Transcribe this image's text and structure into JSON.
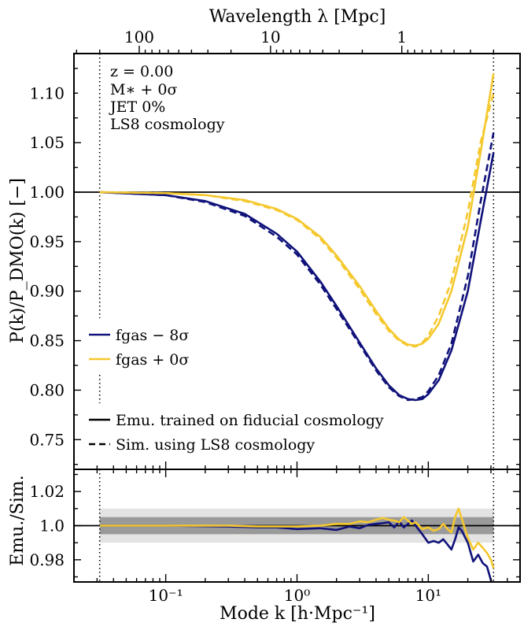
{
  "chart_data": [
    {
      "type": "line",
      "panel": "top",
      "xlabel": "Mode k [h·Mpc⁻¹]",
      "ylabel": "P(k)/P_DMO(k) [−]",
      "top_axis_label": "Wavelength λ [Mpc]",
      "top_ticks": [
        {
          "lambda": 100,
          "label": "100"
        },
        {
          "lambda": 10,
          "label": "10"
        },
        {
          "lambda": 1,
          "label": "1"
        }
      ],
      "xscale": "log",
      "xlim": [
        0.02,
        50
      ],
      "ylim": [
        0.72,
        1.14
      ],
      "yticks": [
        0.75,
        0.8,
        0.85,
        0.9,
        0.95,
        1.0,
        1.05,
        1.1
      ],
      "ytick_labels": [
        "0.75",
        "0.80",
        "0.85",
        "0.90",
        "0.95",
        "1.00",
        "1.05",
        "1.10"
      ],
      "reference_line": 1.0,
      "vlines": [
        0.0314,
        31.4
      ],
      "annotation": [
        "z = 0.00",
        "M∗ + 0σ",
        "JET 0%",
        "LS8 cosmology"
      ],
      "legend_colors": [
        {
          "label": "fgas − 8σ",
          "color": "#10127a"
        },
        {
          "label": "fgas + 0σ",
          "color": "#f5c82e"
        }
      ],
      "legend_styles": [
        {
          "label": "Emu. trained on fiducial cosmology",
          "dash": false
        },
        {
          "label": "Sim. using LS8 cosmology",
          "dash": true
        }
      ],
      "series": [
        {
          "color": "#10127a",
          "style": "solid",
          "x": [
            0.0314,
            0.1,
            0.2,
            0.4,
            0.7,
            1.0,
            1.5,
            2.0,
            3.0,
            4.0,
            5.0,
            6.0,
            7.0,
            8.0,
            9.0,
            10.0,
            12.0,
            15.0,
            20.0,
            25.0,
            31.4
          ],
          "y": [
            1.0,
            0.997,
            0.991,
            0.978,
            0.958,
            0.94,
            0.91,
            0.885,
            0.848,
            0.822,
            0.805,
            0.795,
            0.791,
            0.79,
            0.791,
            0.796,
            0.81,
            0.84,
            0.9,
            0.97,
            1.04
          ]
        },
        {
          "color": "#10127a",
          "style": "dashed",
          "x": [
            0.0314,
            0.1,
            0.2,
            0.4,
            0.7,
            1.0,
            1.5,
            2.0,
            3.0,
            4.0,
            5.0,
            6.0,
            7.0,
            8.0,
            9.0,
            10.0,
            12.0,
            15.0,
            20.0,
            25.0,
            31.4
          ],
          "y": [
            1.0,
            0.997,
            0.99,
            0.976,
            0.955,
            0.937,
            0.907,
            0.882,
            0.846,
            0.82,
            0.803,
            0.794,
            0.79,
            0.791,
            0.793,
            0.799,
            0.815,
            0.847,
            0.915,
            0.99,
            1.06
          ]
        },
        {
          "color": "#f5c82e",
          "style": "solid",
          "x": [
            0.0314,
            0.1,
            0.2,
            0.4,
            0.7,
            1.0,
            1.5,
            2.0,
            3.0,
            4.0,
            5.0,
            6.0,
            7.0,
            8.0,
            9.0,
            10.0,
            12.0,
            15.0,
            20.0,
            25.0,
            31.4
          ],
          "y": [
            1.0,
            0.999,
            0.997,
            0.992,
            0.983,
            0.973,
            0.955,
            0.936,
            0.905,
            0.88,
            0.862,
            0.851,
            0.846,
            0.845,
            0.847,
            0.852,
            0.867,
            0.9,
            0.965,
            1.04,
            1.12
          ]
        },
        {
          "color": "#f5c82e",
          "style": "dashed",
          "x": [
            0.0314,
            0.1,
            0.2,
            0.4,
            0.7,
            1.0,
            1.5,
            2.0,
            3.0,
            4.0,
            5.0,
            6.0,
            7.0,
            8.0,
            9.0,
            10.0,
            12.0,
            15.0,
            20.0,
            25.0,
            31.4
          ],
          "y": [
            1.0,
            0.999,
            0.997,
            0.991,
            0.982,
            0.972,
            0.953,
            0.934,
            0.902,
            0.877,
            0.86,
            0.85,
            0.845,
            0.844,
            0.848,
            0.855,
            0.875,
            0.91,
            0.98,
            1.05,
            1.1
          ]
        }
      ]
    },
    {
      "type": "line",
      "panel": "bottom",
      "ylabel": "Emu./Sim.",
      "xscale": "log",
      "xlim": [
        0.02,
        50
      ],
      "ylim": [
        0.967,
        1.033
      ],
      "yticks": [
        0.98,
        1.0,
        1.02
      ],
      "ytick_labels": [
        "0.98",
        "1.0",
        "1.02"
      ],
      "xticks": [
        0.1,
        1,
        10
      ],
      "xtick_labels": [
        "10⁻¹",
        "10⁰",
        "10¹"
      ],
      "reference_line": 1.0,
      "bands": [
        {
          "low": 0.99,
          "high": 1.01,
          "color": "#e3e3e3"
        },
        {
          "low": 0.995,
          "high": 1.005,
          "color": "#9a9a9a"
        }
      ],
      "series": [
        {
          "color": "#10127a",
          "style": "solid",
          "x": [
            0.0314,
            0.1,
            0.3,
            0.5,
            0.7,
            1.0,
            1.5,
            2.0,
            2.5,
            3.0,
            3.5,
            4.0,
            4.5,
            5.0,
            5.5,
            6.0,
            6.5,
            7.0,
            7.5,
            8.0,
            9.0,
            10.0,
            11.0,
            12.0,
            13.0,
            14.0,
            15.0,
            16.0,
            17.0,
            18.0,
            20.0,
            22.0,
            24.0,
            26.0,
            28.0,
            30.0,
            31.4
          ],
          "y": [
            1.0,
            1.0,
            0.9995,
            0.999,
            0.999,
            0.998,
            0.9985,
            0.9975,
            0.9995,
            0.9985,
            1.0005,
            1.001,
            1.0015,
            1.002,
            0.999,
            1.0025,
            0.999,
            1.001,
            1.003,
            1.0,
            0.995,
            0.99,
            0.991,
            0.99,
            0.992,
            0.989,
            0.986,
            0.992,
            0.999,
            0.997,
            0.99,
            0.979,
            0.983,
            0.978,
            0.976,
            0.968,
            0.962
          ]
        },
        {
          "color": "#f5c82e",
          "style": "solid",
          "x": [
            0.0314,
            0.1,
            0.3,
            0.5,
            0.7,
            1.0,
            1.5,
            2.0,
            2.5,
            3.0,
            3.5,
            4.0,
            4.5,
            5.0,
            5.5,
            6.0,
            6.5,
            7.0,
            7.5,
            8.0,
            9.0,
            10.0,
            11.0,
            12.0,
            13.0,
            14.0,
            15.0,
            16.0,
            17.0,
            18.0,
            20.0,
            22.0,
            24.0,
            26.0,
            28.0,
            30.0,
            31.4
          ],
          "y": [
            1.0,
            1.0,
            1.0,
            0.9995,
            0.9995,
            0.9995,
            1.0,
            1.001,
            1.001,
            1.0025,
            1.002,
            1.0035,
            1.0045,
            1.0035,
            1.003,
            1.002,
            1.005,
            1.003,
            1.001,
            1.002,
            0.998,
            0.999,
            0.997,
            0.998,
            1.001,
            0.998,
            0.996,
            1.005,
            1.01,
            1.004,
            0.993,
            0.986,
            0.99,
            0.987,
            0.984,
            0.98,
            0.975
          ]
        }
      ]
    }
  ]
}
